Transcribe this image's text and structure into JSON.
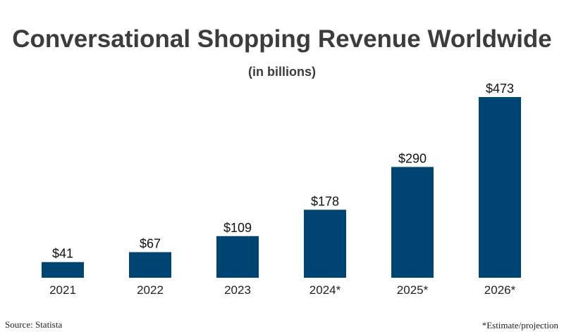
{
  "chart_data": {
    "type": "bar",
    "title": "Conversational Shopping Revenue Worldwide",
    "subtitle": "(in billions)",
    "categories": [
      "2021",
      "2022",
      "2023",
      "2024*",
      "2025*",
      "2026*"
    ],
    "values": [
      41,
      67,
      109,
      178,
      290,
      473
    ],
    "value_labels": [
      "$41",
      "$67",
      "$109",
      "$178",
      "$290",
      "$473"
    ],
    "xlabel": "",
    "ylabel": "",
    "ylim": [
      0,
      473
    ],
    "grid": false,
    "legend": "none",
    "bar_color": "#004471"
  },
  "footer": {
    "source": "Source: Statista",
    "note": "*Estimate/projection"
  }
}
